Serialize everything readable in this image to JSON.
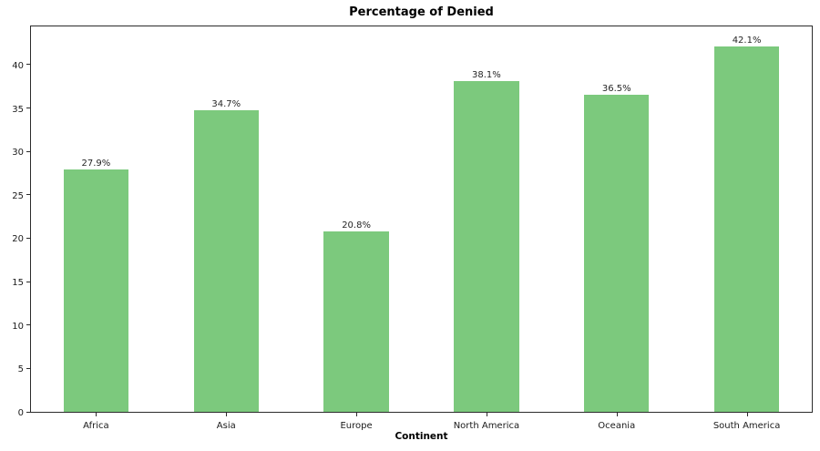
{
  "chart_data": {
    "type": "bar",
    "title": "Percentage of Denied",
    "xlabel": "Continent",
    "ylabel": "",
    "categories": [
      "Africa",
      "Asia",
      "Europe",
      "North America",
      "Oceania",
      "South America"
    ],
    "values": [
      27.9,
      34.7,
      20.8,
      38.1,
      36.5,
      42.1
    ],
    "bar_labels": [
      "27.9%",
      "34.7%",
      "20.8%",
      "38.1%",
      "36.5%",
      "42.1%"
    ],
    "ylim": [
      0,
      44.4
    ],
    "yticks": [
      0,
      5,
      10,
      15,
      20,
      25,
      30,
      35,
      40
    ],
    "grid": false,
    "legend": null,
    "bar_color": "#7cc97d",
    "bar_width_fraction": 0.5
  }
}
